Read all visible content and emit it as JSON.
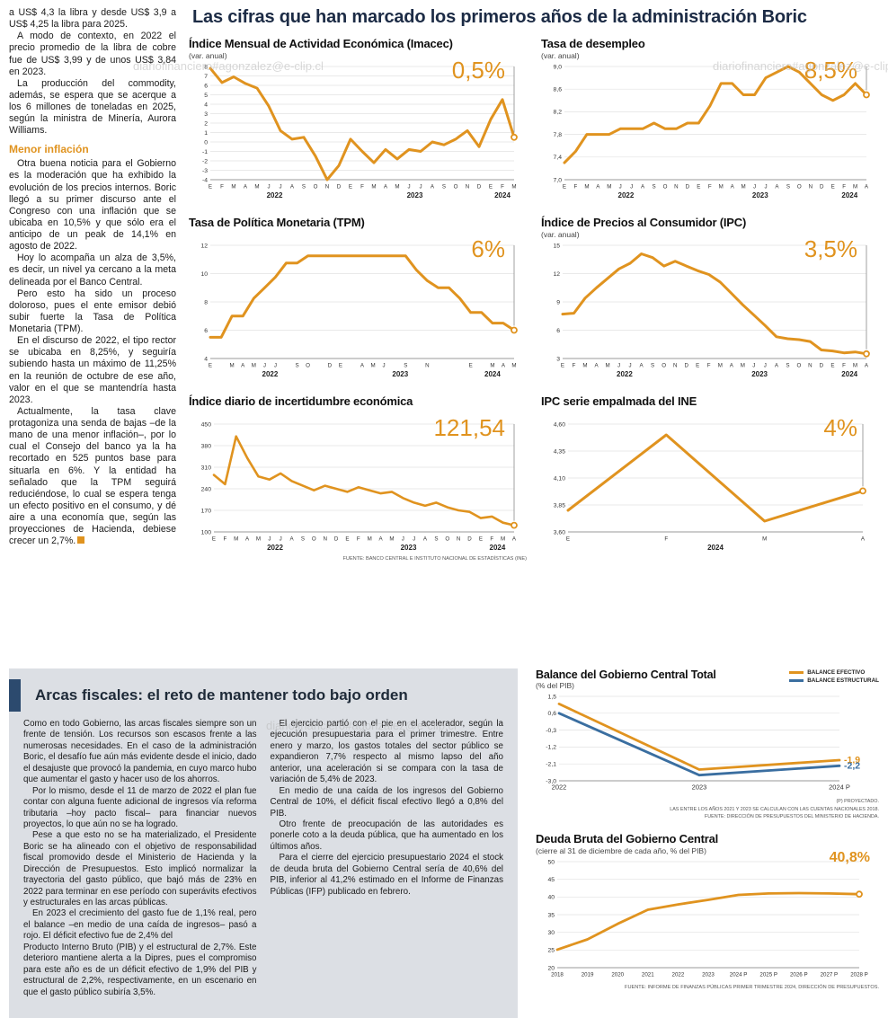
{
  "watermark": "diariofinanciero#agonzalez@e-clip.cl",
  "theme": {
    "orange": "#E0931F",
    "blue": "#3A6EA0",
    "navy": "#2C4A6E",
    "panel_gray": "#DCDFE4",
    "title_color": "#1c2b45"
  },
  "header": {
    "title": "Las cifras que han marcado los primeros años de la administración Boric"
  },
  "left_col": {
    "heading": "Menor inflación",
    "paragraphs": [
      "a US$ 4,3 la libra y desde US$ 3,9 a US$ 4,25 la libra para 2025.",
      "A modo de contexto, en 2022 el precio promedio de la libra de cobre fue de US$ 3,99 y de unos US$ 3,84 en 2023.",
      "La producción del commodity, además, se espera que se acerque a los 6 millones de toneladas en 2025, según la ministra de Minería, Aurora Williams.",
      "Otra buena noticia para el Gobierno es la moderación que ha exhibido la evolución de los precios internos. Boric llegó a su primer discurso ante el Congreso con una inflación que se ubicaba en 10,5% y que sólo era el anticipo de un peak de 14,1% en agosto de 2022.",
      "Hoy lo acompaña un alza de 3,5%, es decir, un nivel ya cercano a la meta delineada por el Banco Central.",
      "Pero esto ha sido un proceso doloroso, pues el ente emisor debió subir fuerte la Tasa de Política Monetaria (TPM).",
      "En el discurso de 2022, el tipo rector se ubicaba en 8,25%, y seguiría subiendo hasta un máximo de 11,25% en la reunión de octubre de ese año, valor en el que se mantendría hasta 2023.",
      "Actualmente, la tasa clave protagoniza una senda de bajas –de la mano de una menor inflación–, por lo cual el Consejo del banco ya la ha recortado en 525 puntos base para situarla en 6%. Y la entidad ha señalado que la TPM seguirá reduciéndose, lo cual se espera tenga un efecto positivo en el consumo, y dé aire a una economía que, según las proyecciones de Hacienda, debiese crecer un 2,7%."
    ]
  },
  "chart_data": [
    {
      "type": "line",
      "title": "Índice Mensual de Actividad Económica (Imacec)",
      "subtitle": "(var. anual)",
      "big_value": "0,5%",
      "ymin": -4,
      "ymax": 8,
      "yticks": [
        8,
        7,
        6,
        5,
        4,
        3,
        2,
        1,
        0,
        -1,
        -2,
        -3,
        -4
      ],
      "ytick_labels": [
        "8",
        "7",
        "6",
        "5",
        "4",
        "3",
        "2",
        "1",
        "0",
        "-1",
        "-2",
        "-3",
        "-4"
      ],
      "x_labels": [
        "E",
        "F",
        "M",
        "A",
        "M",
        "J",
        "J",
        "A",
        "S",
        "O",
        "N",
        "D",
        "E",
        "F",
        "M",
        "A",
        "M",
        "J",
        "J",
        "A",
        "S",
        "O",
        "N",
        "D",
        "E",
        "F",
        "M"
      ],
      "year_spans": [
        {
          "label": "2022",
          "from": 0,
          "to": 11
        },
        {
          "label": "2023",
          "from": 12,
          "to": 23
        },
        {
          "label": "2024",
          "from": 24,
          "to": 26
        }
      ],
      "pointer": true,
      "series": [
        {
          "color": "#E0931F",
          "width": 3,
          "end_marker": true,
          "values": [
            7.8,
            6.3,
            6.9,
            6.2,
            5.7,
            3.8,
            1.2,
            0.3,
            0.5,
            -1.5,
            -4.0,
            -2.5,
            0.3,
            -1.0,
            -2.2,
            -0.8,
            -1.8,
            -0.8,
            -1.0,
            0.0,
            -0.3,
            0.3,
            1.2,
            -0.5,
            2.4,
            4.5,
            0.5
          ]
        }
      ]
    },
    {
      "type": "line",
      "title": "Tasa de desempleo",
      "subtitle": "(var. anual)",
      "big_value": "8,5%",
      "ymin": 7.0,
      "ymax": 9.0,
      "yticks": [
        9.0,
        8.6,
        8.2,
        7.8,
        7.4,
        7.0
      ],
      "ytick_labels": [
        "9,0",
        "8,6",
        "8,2",
        "7,8",
        "7,4",
        "7,0"
      ],
      "x_labels": [
        "E",
        "F",
        "M",
        "A",
        "M",
        "J",
        "J",
        "A",
        "S",
        "O",
        "N",
        "D",
        "E",
        "F",
        "M",
        "A",
        "M",
        "J",
        "J",
        "A",
        "S",
        "O",
        "N",
        "D",
        "E",
        "F",
        "M",
        "A"
      ],
      "year_spans": [
        {
          "label": "2022",
          "from": 0,
          "to": 11
        },
        {
          "label": "2023",
          "from": 12,
          "to": 23
        },
        {
          "label": "2024",
          "from": 24,
          "to": 27
        }
      ],
      "pointer": true,
      "series": [
        {
          "color": "#E0931F",
          "width": 3,
          "end_marker": true,
          "values": [
            7.3,
            7.5,
            7.8,
            7.8,
            7.8,
            7.9,
            7.9,
            7.9,
            8.0,
            7.9,
            7.9,
            8.0,
            8.0,
            8.3,
            8.7,
            8.7,
            8.5,
            8.5,
            8.8,
            8.9,
            9.0,
            8.9,
            8.7,
            8.5,
            8.4,
            8.5,
            8.7,
            8.5
          ]
        }
      ]
    },
    {
      "type": "line",
      "title": "Tasa de Política Monetaria (TPM)",
      "subtitle": "",
      "big_value": "6%",
      "ymin": 4,
      "ymax": 12,
      "yticks": [
        12,
        10,
        8,
        6,
        4
      ],
      "ytick_labels": [
        "12",
        "10",
        "8",
        "6",
        "4"
      ],
      "x_labels": [
        "E",
        "",
        "M",
        "A",
        "M",
        "J",
        "J",
        "",
        "S",
        "O",
        "",
        "D",
        "E",
        "",
        "A",
        "M",
        "J",
        "",
        "S",
        "",
        "N",
        "",
        "",
        "",
        "E",
        "",
        "M",
        "A",
        "M"
      ],
      "year_spans": [
        {
          "label": "2022",
          "from": 0,
          "to": 11
        },
        {
          "label": "2023",
          "from": 12,
          "to": 23
        },
        {
          "label": "2024",
          "from": 24,
          "to": 28
        }
      ],
      "pointer": true,
      "series": [
        {
          "color": "#E0931F",
          "width": 3,
          "end_marker": true,
          "values": [
            5.5,
            5.5,
            7.0,
            7.0,
            8.25,
            9.0,
            9.75,
            10.75,
            10.75,
            11.25,
            11.25,
            11.25,
            11.25,
            11.25,
            11.25,
            11.25,
            11.25,
            11.25,
            11.25,
            10.25,
            9.5,
            9.0,
            9.0,
            8.25,
            7.25,
            7.25,
            6.5,
            6.5,
            6.0
          ]
        }
      ]
    },
    {
      "type": "line",
      "title": "Índice de Precios al Consumidor (IPC)",
      "subtitle": "(var. anual)",
      "big_value": "3,5%",
      "ymin": 3,
      "ymax": 15,
      "yticks": [
        15,
        12,
        9,
        6,
        3
      ],
      "ytick_labels": [
        "15",
        "12",
        "9",
        "6",
        "3"
      ],
      "x_labels": [
        "E",
        "F",
        "M",
        "A",
        "M",
        "J",
        "J",
        "A",
        "S",
        "O",
        "N",
        "D",
        "E",
        "F",
        "M",
        "A",
        "M",
        "J",
        "J",
        "A",
        "S",
        "O",
        "N",
        "D",
        "E",
        "F",
        "M",
        "A"
      ],
      "year_spans": [
        {
          "label": "2022",
          "from": 0,
          "to": 11
        },
        {
          "label": "2023",
          "from": 12,
          "to": 23
        },
        {
          "label": "2024",
          "from": 24,
          "to": 27
        }
      ],
      "pointer": true,
      "series": [
        {
          "color": "#E0931F",
          "width": 3,
          "end_marker": true,
          "values": [
            7.7,
            7.8,
            9.4,
            10.5,
            11.5,
            12.5,
            13.1,
            14.1,
            13.7,
            12.8,
            13.3,
            12.8,
            12.3,
            11.9,
            11.1,
            9.9,
            8.7,
            7.6,
            6.5,
            5.3,
            5.1,
            5.0,
            4.8,
            3.9,
            3.8,
            3.6,
            3.7,
            3.5
          ]
        }
      ]
    },
    {
      "type": "line",
      "title": "Índice diario de incertidumbre económica",
      "subtitle": "",
      "big_value": "121,54",
      "ymin": 100,
      "ymax": 450,
      "yticks": [
        450,
        380,
        310,
        240,
        170,
        100
      ],
      "ytick_labels": [
        "450",
        "380",
        "310",
        "240",
        "170",
        "100"
      ],
      "x_labels": [
        "E",
        "F",
        "M",
        "A",
        "M",
        "J",
        "J",
        "A",
        "S",
        "O",
        "N",
        "D",
        "E",
        "F",
        "M",
        "A",
        "M",
        "J",
        "J",
        "A",
        "S",
        "O",
        "N",
        "D",
        "E",
        "F",
        "M",
        "A"
      ],
      "year_spans": [
        {
          "label": "2022",
          "from": 0,
          "to": 11
        },
        {
          "label": "2023",
          "from": 12,
          "to": 23
        },
        {
          "label": "2024",
          "from": 24,
          "to": 27
        }
      ],
      "pointer": true,
      "source": "FUENTE: BANCO CENTRAL E INSTITUTO NACIONAL DE ESTADÍSTICAS (INE)",
      "series": [
        {
          "color": "#E0931F",
          "width": 2.6,
          "end_marker": true,
          "values": [
            285,
            255,
            410,
            340,
            280,
            270,
            290,
            265,
            250,
            235,
            250,
            240,
            230,
            245,
            235,
            225,
            230,
            210,
            195,
            185,
            195,
            180,
            170,
            165,
            145,
            150,
            130,
            121.54
          ]
        }
      ]
    },
    {
      "type": "line",
      "title": "IPC serie empalmada del INE",
      "subtitle": "",
      "big_value": "4%",
      "ymin": 3.6,
      "ymax": 4.6,
      "yticks": [
        4.6,
        4.35,
        4.1,
        3.85,
        3.6
      ],
      "ytick_labels": [
        "4,60",
        "4,35",
        "4,10",
        "3,85",
        "3,60"
      ],
      "x_labels": [
        "E",
        "F",
        "M",
        "A"
      ],
      "year_spans": [
        {
          "label": "2024",
          "from": 0,
          "to": 3
        }
      ],
      "pointer": true,
      "series": [
        {
          "color": "#E0931F",
          "width": 3,
          "end_marker": true,
          "values": [
            3.8,
            4.5,
            3.7,
            3.98
          ]
        }
      ]
    },
    {
      "type": "line",
      "title": "Balance del Gobierno Central Total",
      "subtitle": "(% del PIB)",
      "big_value": "",
      "ymin": -3.0,
      "ymax": 1.5,
      "yticks": [
        1.5,
        0.6,
        -0.3,
        -1.2,
        -2.1,
        -3.0
      ],
      "ytick_labels": [
        "1,5",
        "0,6",
        "-0,3",
        "-1,2",
        "-2,1",
        "-3,0"
      ],
      "x_labels": [
        "2022",
        "2023",
        "2024 P"
      ],
      "year_spans": [],
      "pointer": false,
      "notes": [
        "(P) PROYECTADO.",
        "LAS ENTRE LOS AÑOS 2021 Y 2023 SE CALCULAN  CON LAS CUENTAS NACIONALES 2018.",
        "FUENTE: DIRECCIÓN DE PRESUPUESTOS DEL MINISTERIO DE HACIENDA."
      ],
      "series": [
        {
          "name": "BALANCE EFECTIVO",
          "color": "#E0931F",
          "width": 2.8,
          "end_marker": false,
          "end_label": "-1,9",
          "values": [
            1.1,
            -2.4,
            -1.9
          ]
        },
        {
          "name": "BALANCE ESTRUCTURAL",
          "color": "#3A6EA0",
          "width": 2.8,
          "end_marker": false,
          "end_label": "-2,2",
          "values": [
            0.6,
            -2.7,
            -2.2
          ]
        }
      ]
    },
    {
      "type": "line",
      "title": "Deuda Bruta del Gobierno Central",
      "subtitle": "(cierre al 31 de diciembre de cada año, % del PIB)",
      "big_value": "40,8%",
      "ymin": 20,
      "ymax": 50,
      "yticks": [
        50,
        45,
        40,
        35,
        30,
        25,
        20
      ],
      "ytick_labels": [
        "50",
        "45",
        "40",
        "35",
        "30",
        "25",
        "20"
      ],
      "x_labels": [
        "2018",
        "2019",
        "2020",
        "2021",
        "2022",
        "2023",
        "2024 P",
        "2025 P",
        "2026 P",
        "2027 P",
        "2028 P"
      ],
      "year_spans": [],
      "pointer": false,
      "source": "FUENTE: INFORME DE FINANZAS PÚBLICAS PRIMER TRIMESTRE 2024, DIRECCIÓN DE PRESUPUESTOS.",
      "series": [
        {
          "color": "#E0931F",
          "width": 2.8,
          "end_marker": true,
          "values": [
            25.1,
            28.0,
            32.4,
            36.4,
            37.9,
            39.2,
            40.6,
            41.0,
            41.1,
            41.0,
            40.8
          ]
        }
      ]
    }
  ],
  "panel": {
    "title": "Arcas fiscales: el reto de mantener todo bajo orden",
    "paragraphs": [
      "Como en todo Gobierno, las arcas fiscales siempre son un frente de tensión. Los recursos son escasos frente a las numerosas necesidades. En el caso de la administración Boric, el desafío fue aún más evidente desde el inicio, dado el desajuste que provocó la pandemia, en cuyo marco hubo que aumentar el gasto y hacer uso de los ahorros.",
      "Por lo mismo, desde el 11 de marzo de 2022 el plan fue contar con alguna fuente adicional de ingresos vía reforma tributaria –hoy pacto fiscal– para financiar nuevos proyectos, lo que aún no se ha logrado.",
      "Pese a que esto no se ha materializado, el Presidente Boric se ha alineado con el objetivo de responsabilidad fiscal promovido desde el Ministerio de Hacienda y la Dirección de Presupuestos. Esto implicó normalizar la trayectoria del gasto público, que bajó más de 23% en 2022 para terminar en ese período con superávits efectivos y estructurales en las arcas públicas.",
      "En 2023 el crecimiento del gasto fue de 1,1% real, pero el balance –en medio de una caída de ingresos– pasó a rojo. El déficit efectivo fue de 2,4% del",
      "Producto Interno Bruto (PIB) y el estructural de 2,7%. Este deterioro mantiene alerta a la Dipres, pues el compromiso para este año es de un déficit efectivo de 1,9% del PIB y estructural de 2,2%, respectivamente, en un escenario en que el gasto público subiría 3,5%.",
      "El ejercicio partió con el pie en el acelerador, según la ejecución presupuestaria para el primer trimestre. Entre enero y marzo, los gastos totales del sector público se expandieron 7,7% respecto al mismo lapso del año anterior, una aceleración si se compara con la tasa de variación de 5,4% de 2023.",
      "En medio de una caída de los ingresos del Gobierno Central de 10%, el déficit fiscal efectivo llegó a 0,8% del PIB.",
      "Otro frente de preocupación de las autoridades es ponerle coto a la deuda pública, que ha aumentado en los últimos años.",
      "Para el cierre del ejercicio presupuestario 2024 el stock de deuda bruta del Gobierno Central sería de 40,6% del PIB, inferior al 41,2% estimado en el Informe de Finanzas Públicas (IFP) publicado en febrero."
    ]
  }
}
